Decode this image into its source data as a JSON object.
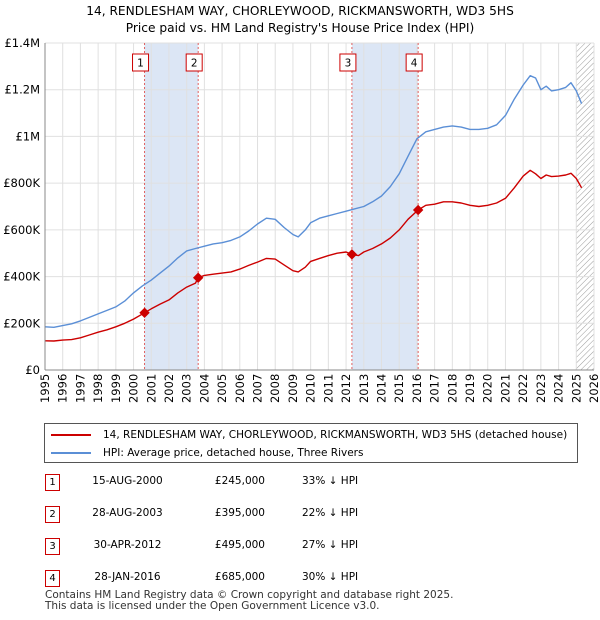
{
  "title_line1": "14, RENDLESHAM WAY, CHORLEYWOOD, RICKMANSWORTH, WD3 5HS",
  "title_line2": "Price paid vs. HM Land Registry's House Price Index (HPI)",
  "colors": {
    "property": "#cc0000",
    "hpi": "#5b8fd6",
    "shade": "#dce6f5",
    "grid": "#e0e0e0",
    "marker_line": "#e06060"
  },
  "chart_data": {
    "type": "line",
    "title": "14, RENDLESHAM WAY, CHORLEYWOOD, RICKMANSWORTH, WD3 5HS — Price paid vs. HM Land Registry's House Price Index (HPI)",
    "xlabel": "",
    "ylabel": "",
    "xlim": [
      1995,
      2026
    ],
    "ylim": [
      0,
      1400000
    ],
    "x_ticks": [
      1995,
      1996,
      1997,
      1998,
      1999,
      2000,
      2001,
      2002,
      2003,
      2004,
      2005,
      2006,
      2007,
      2008,
      2009,
      2010,
      2011,
      2012,
      2013,
      2014,
      2015,
      2016,
      2017,
      2018,
      2019,
      2020,
      2021,
      2022,
      2023,
      2024,
      2025,
      2026
    ],
    "y_ticks": [
      {
        "value": 0,
        "label": "£0"
      },
      {
        "value": 200000,
        "label": "£200K"
      },
      {
        "value": 400000,
        "label": "£400K"
      },
      {
        "value": 600000,
        "label": "£600K"
      },
      {
        "value": 800000,
        "label": "£800K"
      },
      {
        "value": 1000000,
        "label": "£1M"
      },
      {
        "value": 1200000,
        "label": "£1.2M"
      },
      {
        "value": 1400000,
        "label": "£1.4M"
      }
    ],
    "grid": true,
    "shaded_ranges": [
      [
        2000.62,
        2003.65
      ],
      [
        2012.33,
        2016.07
      ]
    ],
    "hatched_from": 2025.0,
    "series": [
      {
        "name": "14, RENDLESHAM WAY, CHORLEYWOOD, RICKMANSWORTH, WD3 5HS (detached house)",
        "color": "#cc0000",
        "x": [
          1995.0,
          1995.5,
          1996.0,
          1996.5,
          1997.0,
          1997.5,
          1998.0,
          1998.5,
          1999.0,
          1999.5,
          2000.0,
          2000.62,
          2001.0,
          2001.5,
          2002.0,
          2002.5,
          2003.0,
          2003.5,
          2003.65,
          2004.0,
          2004.5,
          2005.0,
          2005.5,
          2006.0,
          2006.5,
          2007.0,
          2007.5,
          2008.0,
          2008.5,
          2009.0,
          2009.3,
          2009.7,
          2010.0,
          2010.5,
          2011.0,
          2011.5,
          2012.0,
          2012.33,
          2012.7,
          2013.0,
          2013.5,
          2014.0,
          2014.5,
          2015.0,
          2015.5,
          2016.07,
          2016.5,
          2017.0,
          2017.5,
          2018.0,
          2018.5,
          2019.0,
          2019.5,
          2020.0,
          2020.5,
          2021.0,
          2021.5,
          2022.0,
          2022.4,
          2022.7,
          2023.0,
          2023.3,
          2023.6,
          2024.0,
          2024.4,
          2024.7,
          2025.0,
          2025.3
        ],
        "values": [
          125000,
          124000,
          128000,
          130000,
          138000,
          150000,
          162000,
          172000,
          185000,
          200000,
          218000,
          245000,
          262000,
          282000,
          300000,
          330000,
          355000,
          372000,
          395000,
          405000,
          410000,
          415000,
          420000,
          432000,
          448000,
          462000,
          478000,
          475000,
          450000,
          425000,
          420000,
          440000,
          465000,
          478000,
          490000,
          500000,
          505000,
          495000,
          490000,
          505000,
          520000,
          540000,
          565000,
          600000,
          645000,
          685000,
          705000,
          710000,
          720000,
          720000,
          715000,
          705000,
          700000,
          705000,
          715000,
          735000,
          780000,
          830000,
          855000,
          840000,
          820000,
          835000,
          828000,
          830000,
          835000,
          842000,
          820000,
          780000
        ]
      },
      {
        "name": "HPI: Average price, detached house, Three Rivers",
        "color": "#5b8fd6",
        "x": [
          1995.0,
          1995.5,
          1996.0,
          1996.5,
          1997.0,
          1997.5,
          1998.0,
          1998.5,
          1999.0,
          1999.5,
          2000.0,
          2000.5,
          2001.0,
          2001.5,
          2002.0,
          2002.5,
          2003.0,
          2003.5,
          2004.0,
          2004.5,
          2005.0,
          2005.5,
          2006.0,
          2006.5,
          2007.0,
          2007.5,
          2008.0,
          2008.5,
          2009.0,
          2009.3,
          2009.7,
          2010.0,
          2010.5,
          2011.0,
          2011.5,
          2012.0,
          2012.5,
          2013.0,
          2013.5,
          2014.0,
          2014.5,
          2015.0,
          2015.5,
          2016.0,
          2016.5,
          2017.0,
          2017.5,
          2018.0,
          2018.5,
          2019.0,
          2019.5,
          2020.0,
          2020.5,
          2021.0,
          2021.5,
          2022.0,
          2022.4,
          2022.7,
          2023.0,
          2023.3,
          2023.6,
          2024.0,
          2024.4,
          2024.7,
          2025.0,
          2025.3
        ],
        "values": [
          185000,
          183000,
          190000,
          198000,
          210000,
          225000,
          240000,
          255000,
          270000,
          295000,
          330000,
          360000,
          385000,
          415000,
          445000,
          480000,
          510000,
          520000,
          530000,
          540000,
          545000,
          555000,
          570000,
          595000,
          625000,
          650000,
          645000,
          610000,
          580000,
          570000,
          600000,
          630000,
          650000,
          660000,
          670000,
          680000,
          690000,
          700000,
          720000,
          745000,
          785000,
          840000,
          915000,
          990000,
          1020000,
          1030000,
          1040000,
          1045000,
          1040000,
          1030000,
          1030000,
          1035000,
          1050000,
          1090000,
          1160000,
          1220000,
          1260000,
          1250000,
          1200000,
          1215000,
          1195000,
          1200000,
          1210000,
          1230000,
          1195000,
          1140000
        ]
      }
    ],
    "sales": [
      {
        "label": "1",
        "x": 2000.62,
        "value": 245000
      },
      {
        "label": "2",
        "x": 2003.65,
        "value": 395000
      },
      {
        "label": "3",
        "x": 2012.33,
        "value": 495000
      },
      {
        "label": "4",
        "x": 2016.07,
        "value": 685000
      }
    ]
  },
  "legend": {
    "property_label": "14, RENDLESHAM WAY, CHORLEYWOOD, RICKMANSWORTH, WD3 5HS (detached house)",
    "hpi_label": "HPI: Average price, detached house, Three Rivers"
  },
  "transactions": [
    {
      "num": "1",
      "date": "15-AUG-2000",
      "price": "£245,000",
      "hpi": "33% ↓ HPI"
    },
    {
      "num": "2",
      "date": "28-AUG-2003",
      "price": "£395,000",
      "hpi": "22% ↓ HPI"
    },
    {
      "num": "3",
      "date": "30-APR-2012",
      "price": "£495,000",
      "hpi": "27% ↓ HPI"
    },
    {
      "num": "4",
      "date": "28-JAN-2016",
      "price": "£685,000",
      "hpi": "30% ↓ HPI"
    }
  ],
  "footer_line1": "Contains HM Land Registry data © Crown copyright and database right 2025.",
  "footer_line2": "This data is licensed under the Open Government Licence v3.0."
}
